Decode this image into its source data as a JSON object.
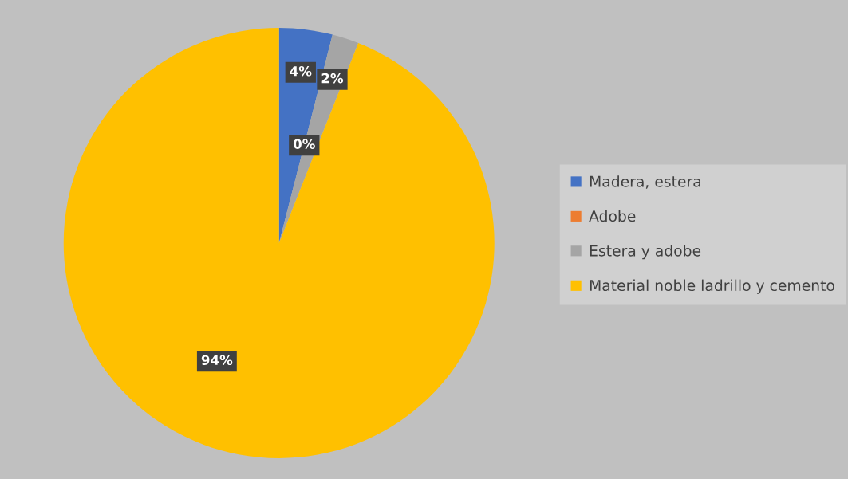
{
  "chart_data": {
    "type": "pie",
    "categories": [
      "Madera, estera",
      "Adobe",
      "Estera y adobe",
      "Material noble ladrillo y cemento"
    ],
    "values": [
      4,
      0,
      2,
      94
    ],
    "colors": [
      "#4472c4",
      "#ed7d31",
      "#a5a5a5",
      "#ffc000"
    ],
    "value_labels": [
      "4%",
      "0%",
      "2%",
      "94%"
    ],
    "legend": "right"
  }
}
